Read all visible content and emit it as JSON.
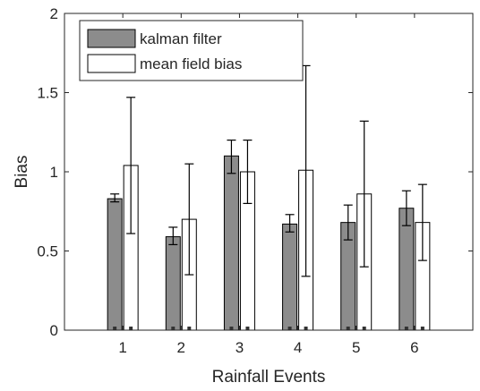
{
  "chart_data": {
    "type": "bar",
    "xlabel": "Rainfall Events",
    "ylabel": "Bias",
    "ylim": [
      0,
      2
    ],
    "yticks": [
      "0",
      "0.5",
      "1",
      "1.5",
      "2"
    ],
    "categories": [
      "1",
      "2",
      "3",
      "4",
      "5",
      "6"
    ],
    "grid": false,
    "legend_position": "top-left",
    "series": [
      {
        "name": "kalman filter",
        "color": "#8c8c8c",
        "values": [
          0.83,
          0.59,
          1.1,
          0.67,
          0.68,
          0.77
        ],
        "err_low": [
          0.81,
          0.54,
          0.99,
          0.62,
          0.57,
          0.66
        ],
        "err_high": [
          0.86,
          0.65,
          1.2,
          0.73,
          0.79,
          0.88
        ]
      },
      {
        "name": "mean field bias",
        "color": "#ffffff",
        "values": [
          1.04,
          0.7,
          1.0,
          1.01,
          0.86,
          0.68
        ],
        "err_low": [
          0.61,
          0.35,
          0.8,
          0.34,
          0.4,
          0.44
        ],
        "err_high": [
          1.47,
          1.05,
          1.2,
          1.67,
          1.32,
          0.92
        ]
      }
    ]
  }
}
